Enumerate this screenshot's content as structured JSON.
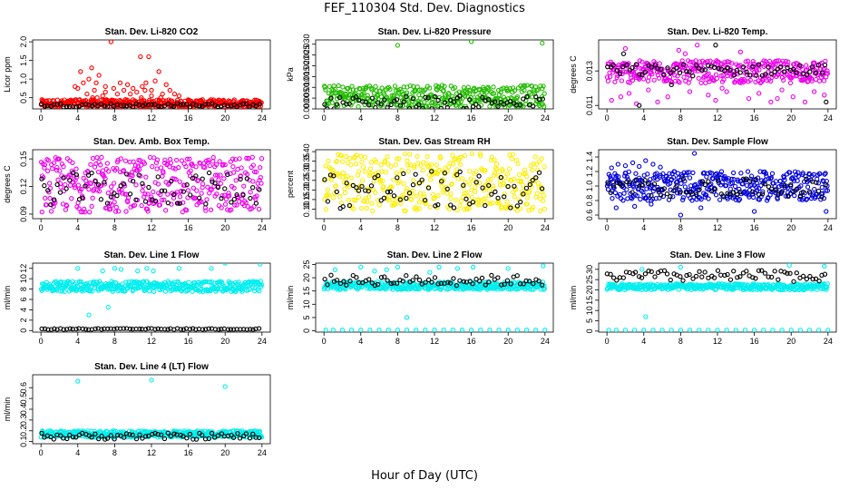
{
  "title": "FEF_110304  Std. Dev. Diagnostics",
  "xlabel": "Hour of Day (UTC)",
  "chart_data": [
    {
      "type": "scatter",
      "title": "Stan. Dev. Li-820 CO2",
      "ylabel": "Licor ppm",
      "xlim": [
        0,
        24
      ],
      "ylim": [
        0.2,
        2.05
      ],
      "xticks": [
        "0",
        "4",
        "8",
        "12",
        "16",
        "20",
        "24"
      ],
      "yticks": [
        0.5,
        1.0,
        1.5,
        2.0
      ],
      "ytick_labels": [
        "0.5",
        "1.0",
        "1.5",
        "2.0"
      ],
      "color": "#ff0000",
      "band_colored": [
        0.25,
        0.45
      ],
      "band_black": [
        0.25,
        0.35
      ],
      "series": [
        {
          "name": "",
          "color": "#ff0000",
          "x": [
            3.7,
            4.0,
            4.3,
            4.6,
            5.0,
            5.2,
            5.5,
            5.8,
            6.0,
            6.3,
            6.7,
            7.0,
            7.6,
            7.9,
            8.3,
            8.6,
            9.0,
            9.4,
            9.7,
            10.0,
            10.4,
            10.8,
            11.0,
            11.4,
            11.7,
            12.0,
            12.4,
            12.8,
            13.2,
            13.6,
            14.0,
            14.5,
            15.0,
            4.2,
            5.6,
            7.0,
            10.9,
            11.3,
            12.0,
            6.1,
            9.2,
            13.0
          ],
          "y": [
            0.8,
            0.75,
            1.2,
            0.9,
            0.6,
            1.0,
            1.3,
            0.7,
            0.9,
            1.1,
            0.55,
            0.8,
            2.0,
            0.75,
            0.6,
            0.9,
            0.7,
            0.85,
            0.6,
            0.75,
            0.65,
            1.6,
            0.8,
            0.9,
            1.6,
            0.7,
            0.95,
            1.2,
            0.6,
            0.85,
            0.7,
            0.6,
            0.55,
            0.45,
            0.5,
            0.65,
            0.5,
            0.7,
            0.55,
            0.5,
            0.45,
            0.5
          ]
        }
      ]
    },
    {
      "type": "scatter",
      "title": "Stan. Dev. Li-820 Pressure",
      "ylabel": "kPa",
      "xlim": [
        0,
        24
      ],
      "ylim": [
        0,
        0.032
      ],
      "xticks": [
        "0",
        "4",
        "8",
        "12",
        "16",
        "20",
        "24"
      ],
      "yticks": [
        0,
        0.005,
        0.01,
        0.015,
        0.02,
        0.025,
        0.03
      ],
      "ytick_labels": [
        "0.000",
        "0.005",
        "0.010",
        "0.015",
        "0.020",
        "0.025",
        "0.030"
      ],
      "color": "#22bb00",
      "band_colored": [
        0.001,
        0.011
      ],
      "band_black": [
        0.0,
        0.006
      ],
      "series": [
        {
          "name": "",
          "color": "#22bb00",
          "x": [
            8.0,
            16.0,
            23.7
          ],
          "y": [
            0.0295,
            0.0312,
            0.0305
          ]
        }
      ]
    },
    {
      "type": "scatter",
      "title": "Stan. Dev. Li-820 Temp.",
      "ylabel": "degrees C",
      "xlim": [
        0,
        24
      ],
      "ylim": [
        0.0108,
        0.0148
      ],
      "xticks": [
        "0",
        "4",
        "8",
        "12",
        "16",
        "20",
        "24"
      ],
      "yticks": [
        0.011,
        0.013
      ],
      "ytick_labels": [
        "0.011",
        "0.013"
      ],
      "color": "#ee00ee",
      "band_colored": [
        0.0123,
        0.0136
      ],
      "band_black": [
        0.0127,
        0.0134
      ],
      "series": [
        {
          "name": "",
          "color": "#ee00ee",
          "x": [
            0.5,
            1.5,
            2.4,
            3.2,
            4.5,
            5.5,
            6.6,
            7.8,
            9.0,
            9.8,
            11.0,
            11.8,
            13.0,
            14.5,
            15.4,
            16.5,
            17.8,
            19.0,
            20.2,
            21.5,
            22.5,
            23.6,
            2.0,
            8.5,
            12.5,
            18.5
          ],
          "y": [
            0.0113,
            0.0115,
            0.0117,
            0.0111,
            0.0119,
            0.0112,
            0.0115,
            0.0142,
            0.0118,
            0.0145,
            0.0116,
            0.0113,
            0.0118,
            0.0141,
            0.0114,
            0.0117,
            0.0112,
            0.0119,
            0.0115,
            0.0112,
            0.0118,
            0.0116,
            0.0143,
            0.014,
            0.012,
            0.0114
          ]
        },
        {
          "name": "",
          "color": "#000000",
          "x": [
            3.5,
            23.8,
            1.8,
            11.8,
            7.0
          ],
          "y": [
            0.011,
            0.0112,
            0.014,
            0.0145,
            0.0122
          ]
        }
      ]
    },
    {
      "type": "scatter",
      "title": "Stan. Dev. Amb. Box Temp.",
      "ylabel": "degrees C",
      "xlim": [
        0,
        24
      ],
      "ylim": [
        0.085,
        0.16
      ],
      "xticks": [
        "0",
        "4",
        "8",
        "12",
        "16",
        "20",
        "24"
      ],
      "yticks": [
        0.09,
        0.12,
        0.15
      ],
      "ytick_labels": [
        "0.09",
        "0.12",
        "0.15"
      ],
      "color": "#ee00ee",
      "band_colored": [
        0.092,
        0.152
      ],
      "band_black": [
        0.1,
        0.135
      ],
      "series": []
    },
    {
      "type": "scatter",
      "title": "Stan. Dev. Gas Stream RH",
      "ylabel": "percent",
      "xlim": [
        0,
        24
      ],
      "ylim": [
        0.05,
        0.41
      ],
      "xticks": [
        "0",
        "4",
        "8",
        "12",
        "16",
        "20",
        "24"
      ],
      "yticks": [
        0.1,
        0.15,
        0.2,
        0.25,
        0.3,
        0.35,
        0.4
      ],
      "ytick_labels": [
        "0.10",
        "0.15",
        "0.20",
        "0.25",
        "0.30",
        "0.35",
        "0.40"
      ],
      "color": "#ffee00",
      "band_colored": [
        0.09,
        0.39
      ],
      "band_black": [
        0.1,
        0.3
      ],
      "series": []
    },
    {
      "type": "scatter",
      "title": "Stan. Dev. Sample Flow",
      "ylabel": "",
      "xlim": [
        0,
        24
      ],
      "ylim": [
        0.55,
        1.5
      ],
      "xticks": [
        "0",
        "4",
        "8",
        "12",
        "16",
        "20",
        "24"
      ],
      "yticks": [
        0.6,
        0.8,
        1.0,
        1.2,
        1.4
      ],
      "ytick_labels": [
        "0.6",
        "0.8",
        "1.0",
        "1.2",
        "1.4"
      ],
      "color": "#0000dd",
      "band_colored": [
        0.8,
        1.2
      ],
      "band_black": [
        0.85,
        1.1
      ],
      "series": [
        {
          "name": "",
          "color": "#0000dd",
          "x": [
            0.5,
            1.2,
            2.0,
            2.8,
            3.5,
            4.2,
            5.0,
            5.8,
            1.0,
            3.0,
            4.8,
            9.5,
            10.2,
            16.0,
            23.8,
            8.0
          ],
          "y": [
            1.25,
            1.3,
            1.28,
            1.32,
            1.27,
            1.35,
            1.3,
            1.26,
            0.7,
            0.72,
            0.75,
            1.45,
            0.7,
            0.65,
            0.65,
            0.6
          ]
        }
      ]
    },
    {
      "type": "scatter",
      "title": "Stan. Dev. Line 1 Flow",
      "ylabel": "ml/min",
      "xlim": [
        0,
        24
      ],
      "ylim": [
        -0.3,
        13
      ],
      "xticks": [
        "0",
        "4",
        "8",
        "12",
        "16",
        "20",
        "24"
      ],
      "yticks": [
        0,
        2,
        4,
        6,
        8,
        10,
        12
      ],
      "ytick_labels": [
        "0",
        "2",
        "4",
        "6",
        "8",
        "10",
        "12"
      ],
      "color": "#00eeee",
      "band_colored": [
        7.5,
        9.5
      ],
      "band_black": [
        0.2,
        0.4
      ],
      "series": [
        {
          "name": "",
          "color": "#00eeee",
          "x": [
            4.0,
            5.2,
            6.7,
            7.3,
            8.0,
            8.7,
            10.5,
            11.5,
            12.2,
            15.0,
            18.5,
            20.0,
            23.8
          ],
          "y": [
            12.0,
            3.0,
            11.5,
            4.5,
            12.0,
            11.8,
            11.5,
            12.0,
            11.5,
            12.0,
            12.0,
            13.0,
            12.8
          ]
        }
      ]
    },
    {
      "type": "scatter",
      "title": "Stan. Dev. Line 2 Flow",
      "ylabel": "ml/min",
      "xlim": [
        0,
        24
      ],
      "ylim": [
        -0.5,
        25.5
      ],
      "xticks": [
        "0",
        "4",
        "8",
        "12",
        "16",
        "20",
        "24"
      ],
      "yticks": [
        0,
        5,
        10,
        15,
        20,
        25
      ],
      "ytick_labels": [
        "0",
        "5",
        "10",
        "15",
        "20",
        "25"
      ],
      "color": "#00eeee",
      "band_colored": [
        15.5,
        18.5
      ],
      "band_black": [
        17.0,
        21.0
      ],
      "series": [
        {
          "name": "",
          "color": "#00eeee",
          "x": [
            1.2,
            4.0,
            5.5,
            6.8,
            8.0,
            9.0,
            11.5,
            12.5,
            14.5,
            16.2,
            20.0,
            23.8
          ],
          "y": [
            23.0,
            24.0,
            22.5,
            23.0,
            24.0,
            5.0,
            22.0,
            24.0,
            23.5,
            24.0,
            23.5,
            24.5
          ]
        },
        {
          "name": "",
          "color": "#00eeee",
          "x": [
            0.2,
            1.0,
            2.0,
            3.0,
            4.0,
            5.0,
            6.0,
            7.0,
            8.0,
            9.0,
            10.0,
            11.0,
            12.0,
            13.0,
            14.0,
            15.0,
            16.0,
            17.0,
            18.0,
            19.0,
            20.0,
            21.0,
            22.0,
            23.0,
            24.0
          ],
          "y": [
            0.3,
            0.3,
            0.3,
            0.3,
            0.3,
            0.3,
            0.3,
            0.3,
            0.3,
            0.3,
            0.3,
            0.3,
            0.3,
            0.3,
            0.3,
            0.3,
            0.3,
            0.3,
            0.3,
            0.3,
            0.3,
            0.3,
            0.3,
            0.3,
            0.3
          ]
        }
      ]
    },
    {
      "type": "scatter",
      "title": "Stan. Dev. Line 3 Flow",
      "ylabel": "ml/min",
      "xlim": [
        0,
        24
      ],
      "ylim": [
        -0.5,
        33
      ],
      "xticks": [
        "0",
        "4",
        "8",
        "12",
        "16",
        "20",
        "24"
      ],
      "yticks": [
        0,
        5,
        10,
        15,
        20,
        25,
        30
      ],
      "ytick_labels": [
        "0",
        "5",
        "10",
        "15",
        "20",
        "25",
        "30"
      ],
      "color": "#00eeee",
      "band_colored": [
        20.0,
        23.0
      ],
      "band_black": [
        24.0,
        29.5
      ],
      "series": [
        {
          "name": "",
          "color": "#00eeee",
          "x": [
            0.2,
            1.0,
            2.0,
            3.0,
            4.0,
            5.0,
            6.0,
            7.0,
            8.0,
            9.0,
            10.0,
            11.0,
            12.0,
            13.0,
            14.0,
            15.0,
            16.0,
            17.0,
            18.0,
            19.0,
            20.0,
            21.0,
            22.0,
            23.0,
            24.0,
            4.2,
            3.8,
            8.0,
            19.8,
            23.6
          ],
          "y": [
            0.5,
            0.5,
            0.5,
            0.5,
            0.5,
            0.5,
            0.5,
            0.5,
            0.5,
            0.5,
            0.5,
            0.5,
            0.5,
            0.5,
            0.5,
            0.5,
            0.5,
            0.5,
            0.5,
            0.5,
            0.5,
            0.5,
            0.5,
            0.5,
            0.5,
            7.0,
            30.0,
            31.0,
            32.0,
            31.5
          ]
        }
      ]
    },
    {
      "type": "scatter",
      "title": "Stan. Dev. Line 4 (LT) Flow",
      "ylabel": "ml/min",
      "xlim": [
        0,
        24
      ],
      "ylim": [
        0.08,
        0.72
      ],
      "xticks": [
        "0",
        "4",
        "8",
        "12",
        "16",
        "20",
        "24"
      ],
      "yticks": [
        0.1,
        0.2,
        0.3,
        0.4,
        0.5,
        0.6
      ],
      "ytick_labels": [
        "0.1",
        "0.2",
        "0.3",
        "0.4",
        "0.5",
        "0.6"
      ],
      "color": "#00eeee",
      "band_colored": [
        0.14,
        0.2
      ],
      "band_black": [
        0.12,
        0.18
      ],
      "series": [
        {
          "name": "",
          "color": "#00eeee",
          "x": [
            4.0,
            12.0,
            20.0
          ],
          "y": [
            0.66,
            0.67,
            0.61
          ]
        }
      ]
    }
  ]
}
